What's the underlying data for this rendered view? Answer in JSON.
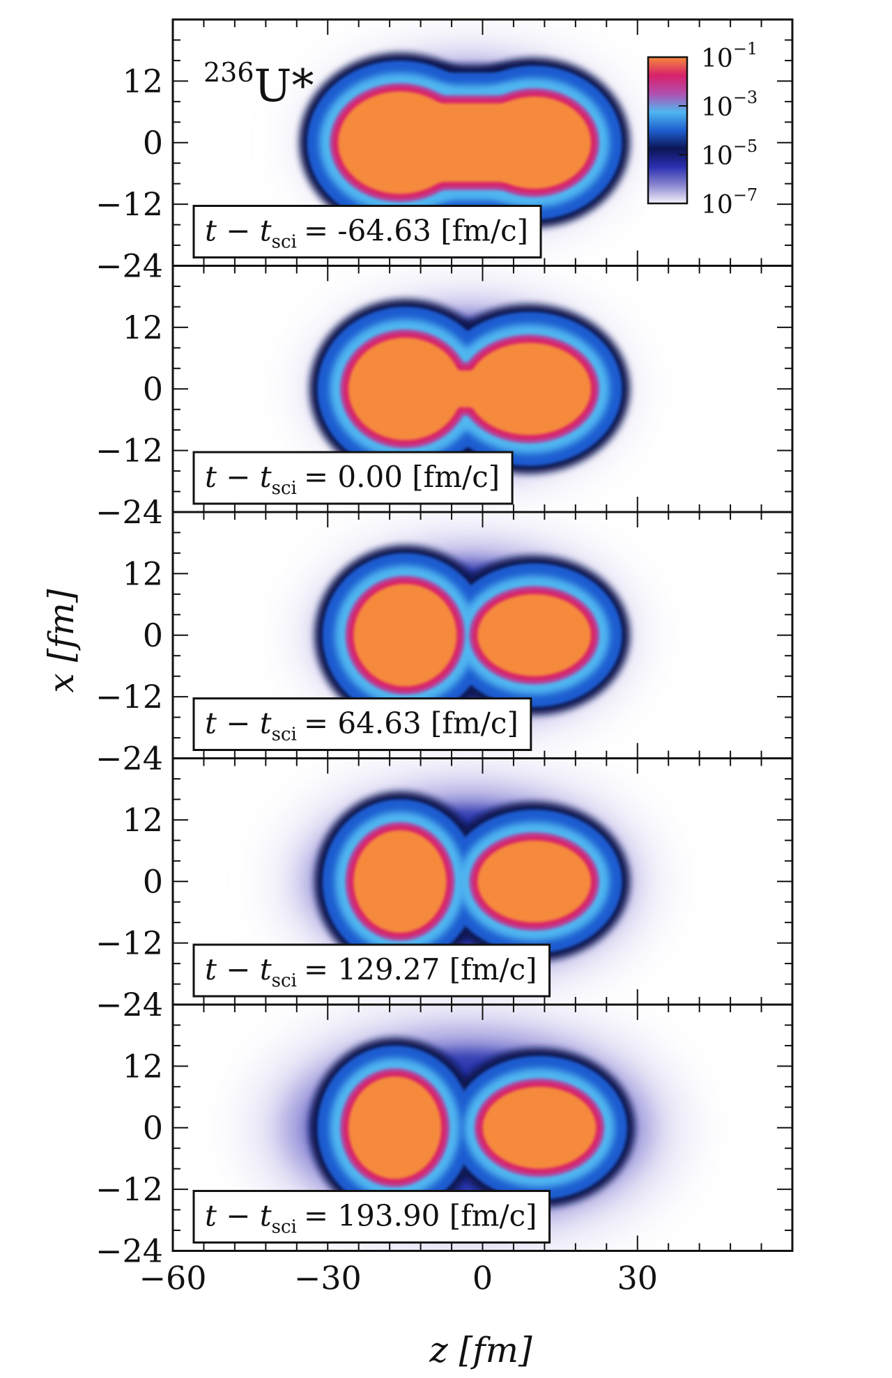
{
  "chart_data": {
    "type": "heatmap",
    "nucleus": {
      "mass_number": "236",
      "symbol": "U*"
    },
    "xlabel": "z [fm]",
    "ylabel": "x [fm]",
    "z_ticks": [
      -60,
      -30,
      0,
      30
    ],
    "z_tick_labels": [
      "−60",
      "−30",
      "0",
      "30"
    ],
    "zlim": [
      -60,
      60
    ],
    "x_ticks": [
      12,
      0,
      -12,
      -24
    ],
    "x_tick_labels": [
      "12",
      "0",
      "−12",
      "−24"
    ],
    "xlim": [
      -24,
      24
    ],
    "colorbar": {
      "scale": "log",
      "range": [
        1e-07,
        0.1
      ],
      "ticks": [
        {
          "value": 0.1,
          "base": "10",
          "exp": "−1"
        },
        {
          "value": 0.001,
          "base": "10",
          "exp": "−3"
        },
        {
          "value": 1e-05,
          "base": "10",
          "exp": "−5"
        },
        {
          "value": 1e-07,
          "base": "10",
          "exp": "−7"
        }
      ],
      "colors": [
        "#f4f2fa",
        "#8a86d0",
        "#2a2fb0",
        "#0c1555",
        "#1f5fcf",
        "#4fb6f0",
        "#b24fb0",
        "#d8206a",
        "#f58a3c"
      ]
    },
    "panels": [
      {
        "time_label": "t − t_sci = -64.63 [fm/c]",
        "time_prefix": "t − t",
        "time_sub": "sci",
        "time_value": "= -64.63 [fm/c]",
        "t_minus_tsci": -64.63,
        "fragments": [
          {
            "z": -16,
            "x": 0,
            "rz": 12,
            "rx": 10
          },
          {
            "z": 10,
            "x": 0,
            "rz": 11,
            "rx": 9
          }
        ],
        "neck": 0.85,
        "halo": 1.0
      },
      {
        "time_label": "t − t_sci = 0.00 [fm/c]",
        "time_prefix": "t − t",
        "time_sub": "sci",
        "time_value": "= 0.00 [fm/c]",
        "t_minus_tsci": 0.0,
        "fragments": [
          {
            "z": -15,
            "x": 0,
            "rz": 11,
            "rx": 10
          },
          {
            "z": 9,
            "x": 0,
            "rz": 12,
            "rx": 9
          }
        ],
        "neck": 0.4,
        "halo": 1.1
      },
      {
        "time_label": "t − t_sci = 64.63 [fm/c]",
        "time_prefix": "t − t",
        "time_sub": "sci",
        "time_value": "= 64.63 [fm/c]",
        "t_minus_tsci": 64.63,
        "fragments": [
          {
            "z": -15,
            "x": 0,
            "rz": 10,
            "rx": 10
          },
          {
            "z": 10,
            "x": 0,
            "rz": 11,
            "rx": 8
          }
        ],
        "neck": 0.0,
        "halo": 1.4
      },
      {
        "time_label": "t − t_sci = 129.27 [fm/c]",
        "time_prefix": "t − t",
        "time_sub": "sci",
        "time_value": "= 129.27 [fm/c]",
        "t_minus_tsci": 129.27,
        "fragments": [
          {
            "z": -16,
            "x": 0,
            "rz": 9,
            "rx": 10
          },
          {
            "z": 10,
            "x": 0,
            "rz": 11,
            "rx": 8
          }
        ],
        "neck": 0.0,
        "halo": 2.0
      },
      {
        "time_label": "t − t_sci = 193.90 [fm/c]",
        "time_prefix": "t − t",
        "time_sub": "sci",
        "time_value": "= 193.90 [fm/c]",
        "t_minus_tsci": 193.9,
        "fragments": [
          {
            "z": -17,
            "x": 0,
            "rz": 9,
            "rx": 10
          },
          {
            "z": 11,
            "x": 0,
            "rz": 11,
            "rx": 8
          }
        ],
        "neck": 0.0,
        "halo": 2.6
      }
    ]
  }
}
